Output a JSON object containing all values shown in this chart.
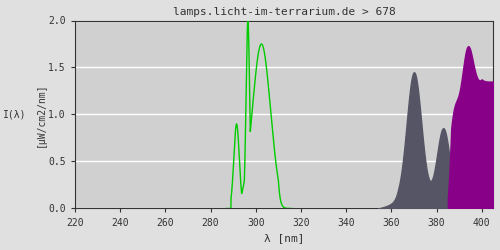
{
  "title": "lamps.licht-im-terrarium.de > 678",
  "xlabel": "λ [nm]",
  "ylabel_top": "[μW/cm2/nm]",
  "ylabel_bottom": "I(λ)",
  "xlim": [
    220,
    405
  ],
  "ylim": [
    0,
    2.0
  ],
  "yticks": [
    0.0,
    0.5,
    1.0,
    1.5,
    2.0
  ],
  "xticks": [
    220,
    240,
    260,
    280,
    300,
    320,
    340,
    360,
    380,
    400
  ],
  "bg_color": "#e0e0e0",
  "plot_bg_color": "#d0d0d0",
  "grid_color": "#ffffff",
  "line_color": "#00cc00",
  "gray_fill_color": "#555566",
  "purple_fill_color": "#880088",
  "title_color": "#333333",
  "axis_color": "#333333",
  "font_family": "monospace"
}
